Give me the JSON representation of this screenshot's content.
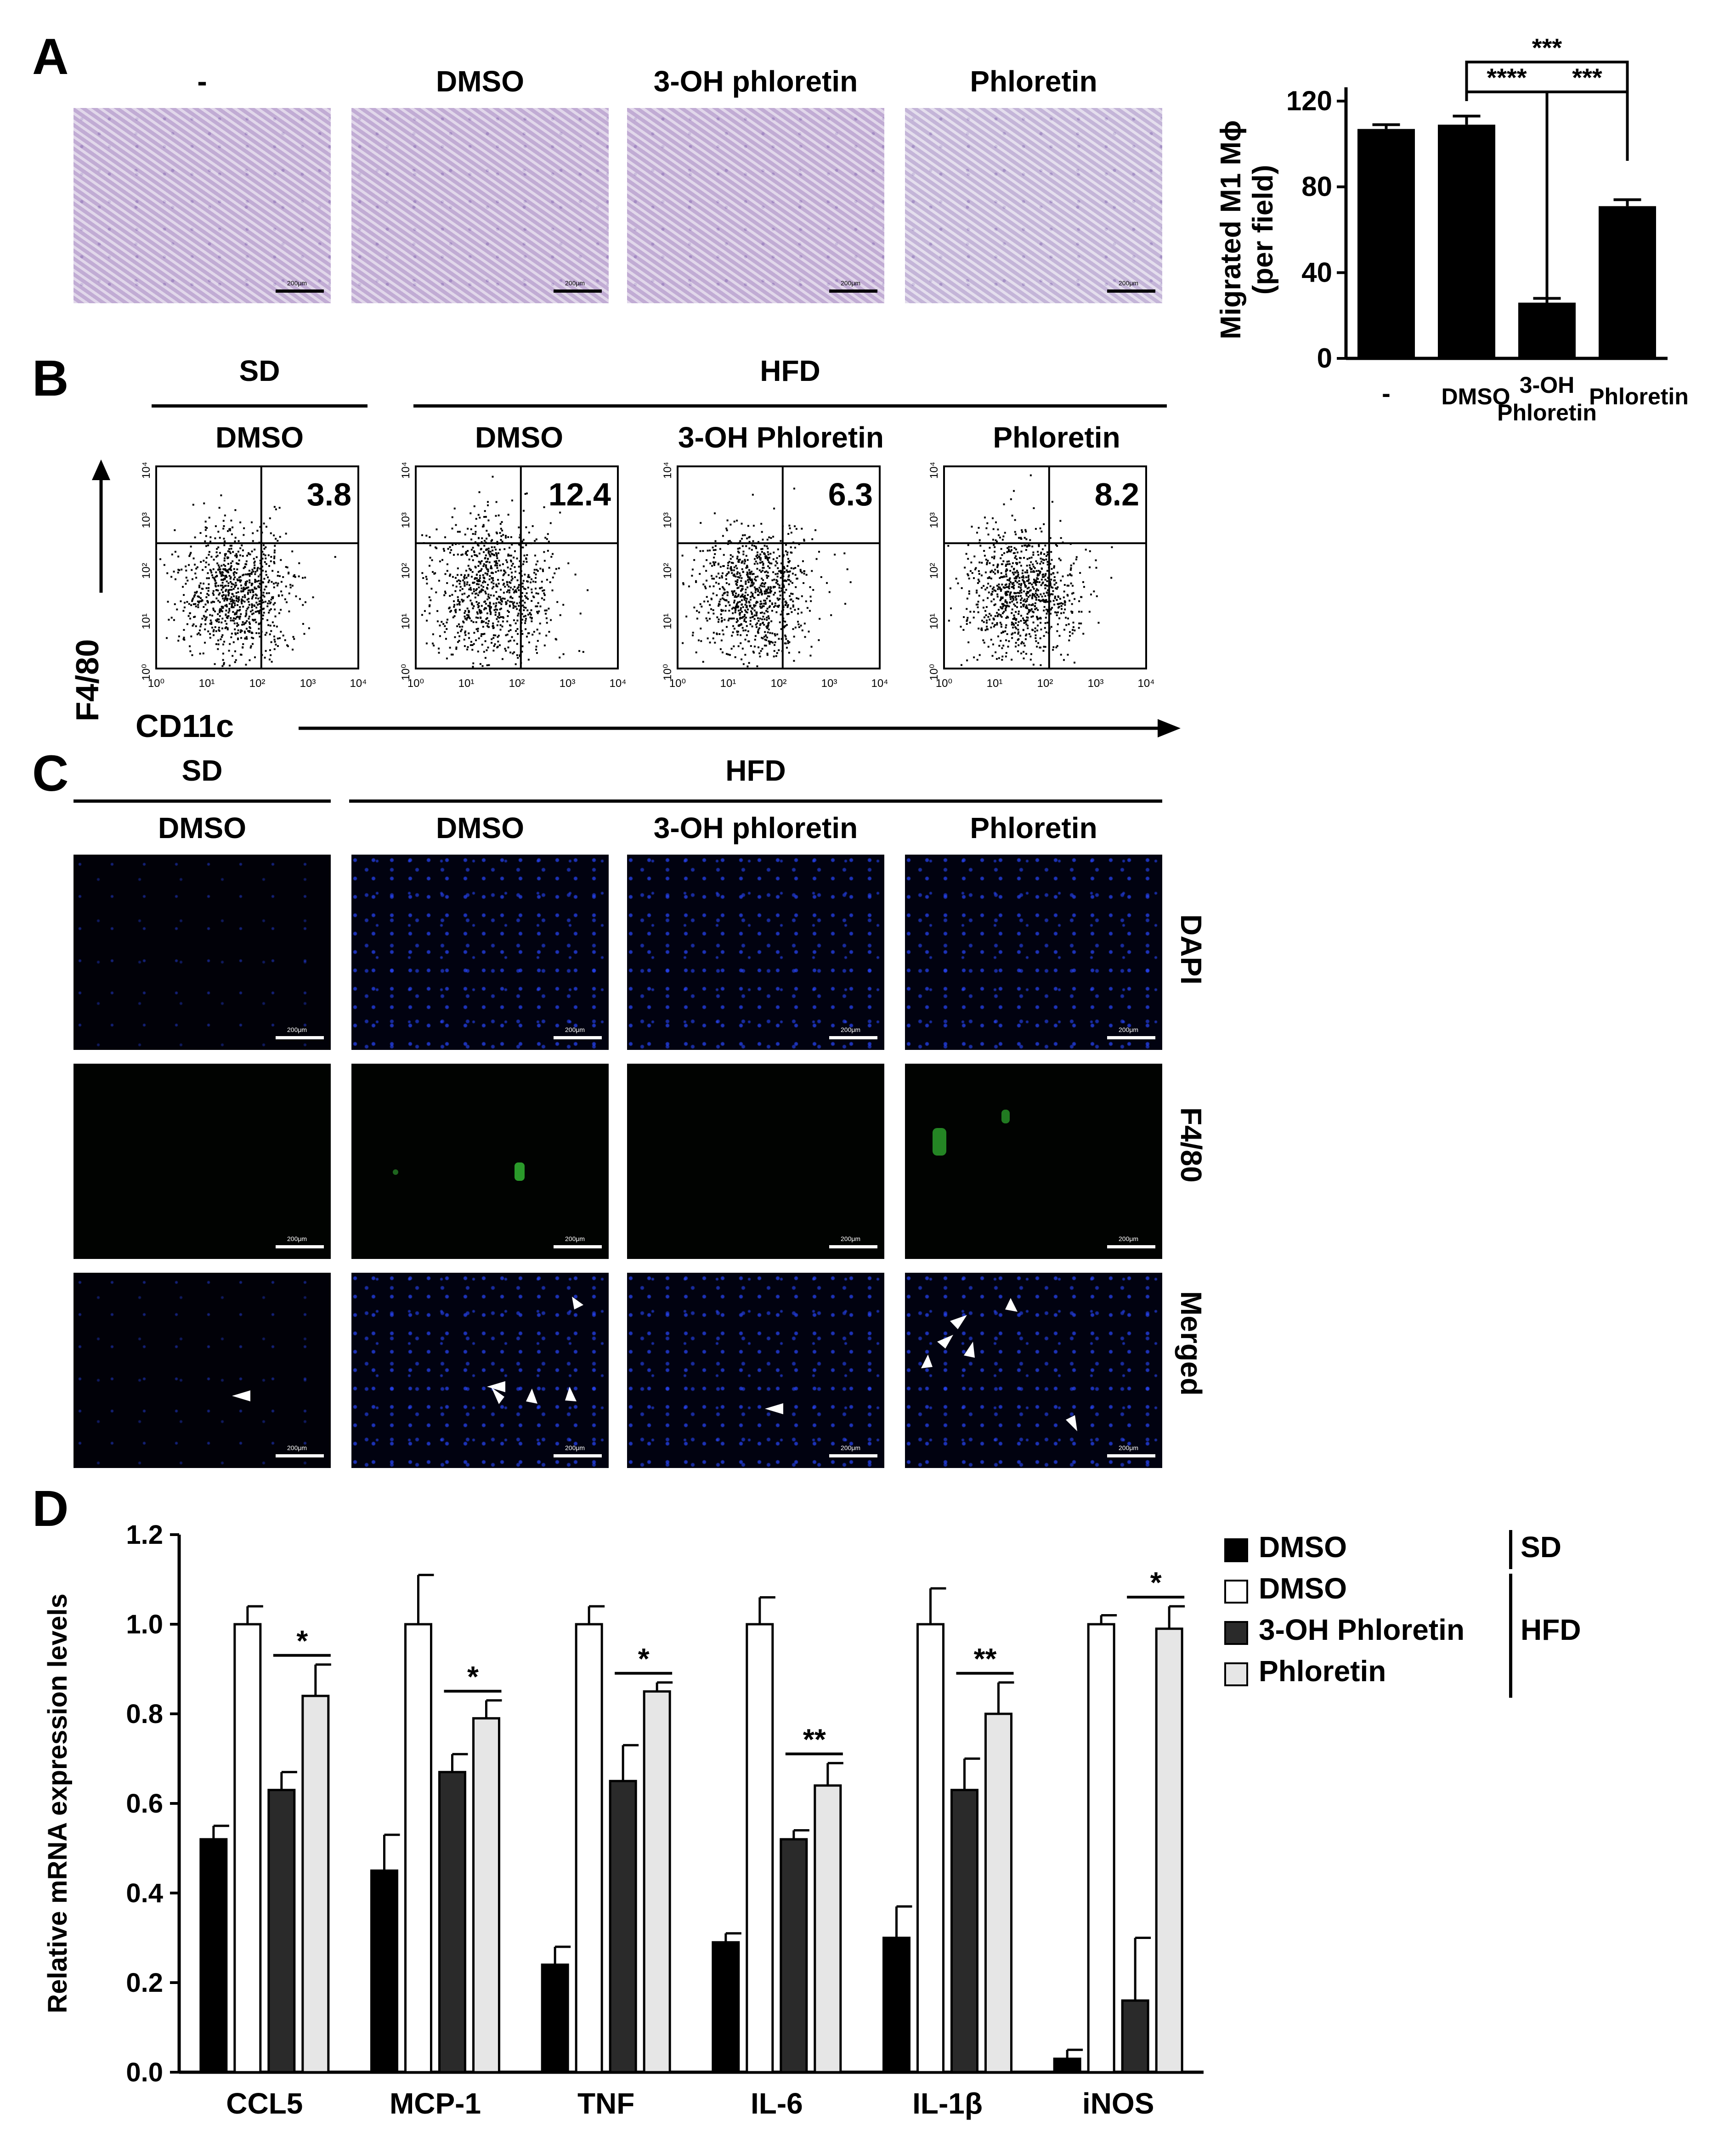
{
  "panelA": {
    "label": "A",
    "headers": [
      "-",
      "DMSO",
      "3-OH phloretin",
      "Phloretin"
    ],
    "scale_text": "200μm",
    "chart": {
      "ylabel_line1": "Migrated M1 Mϕ",
      "ylabel_line2": "(per field)",
      "yticks": [
        "0",
        "40",
        "80",
        "120"
      ],
      "xlabels": [
        "-",
        "DMSO",
        "3-OH",
        "Phloretin",
        "Phloretin"
      ],
      "sig": [
        "***",
        "****",
        "***"
      ]
    }
  },
  "panelB": {
    "label": "B",
    "group_sd": "SD",
    "group_hfd": "HFD",
    "headers": [
      "DMSO",
      "DMSO",
      "3-OH Phloretin",
      "Phloretin"
    ],
    "percentages": [
      "3.8",
      "12.4",
      "6.3",
      "8.2"
    ],
    "ylabel": "F4/80",
    "xlabel": "CD11c",
    "ticks": [
      "10⁰",
      "10¹",
      "10²",
      "10³",
      "10⁴"
    ],
    "last_tick": "10⁴"
  },
  "panelC": {
    "label": "C",
    "group_sd": "SD",
    "group_hfd": "HFD",
    "headers": [
      "DMSO",
      "DMSO",
      "3-OH phloretin",
      "Phloretin"
    ],
    "row_labels": [
      "DAPI",
      "F4/80",
      "Merged"
    ],
    "scale_text": "200μm"
  },
  "panelD": {
    "label": "D",
    "legend": {
      "items": [
        "DMSO",
        "DMSO",
        "3-OH Phloretin",
        "Phloretin"
      ],
      "groups": [
        "SD",
        "HFD"
      ]
    },
    "sig_labels": [
      "*",
      "*",
      "*",
      "**",
      "**",
      "*"
    ]
  },
  "chart_data": [
    {
      "type": "bar",
      "categories": [
        "-",
        "DMSO",
        "3-OH Phloretin",
        "Phloretin"
      ],
      "values": [
        107,
        109,
        26,
        71
      ],
      "errors": [
        2,
        4,
        2,
        3
      ],
      "ylabel": "Migrated M1 Mϕ (per field)",
      "ylim": [
        0,
        120
      ],
      "yticks": [
        0,
        40,
        80,
        120
      ],
      "significance": [
        {
          "pair": [
            "DMSO",
            "3-OH Phloretin"
          ],
          "label": "****"
        },
        {
          "pair": [
            "3-OH Phloretin",
            "Phloretin"
          ],
          "label": "***"
        },
        {
          "pair": [
            "DMSO",
            "Phloretin"
          ],
          "label": "***"
        }
      ]
    },
    {
      "type": "bar",
      "categories": [
        "CCL5",
        "MCP-1",
        "TNF",
        "IL-6",
        "IL-1β",
        "iNOS"
      ],
      "series": [
        {
          "name": "DMSO (SD)",
          "fill": "#000000",
          "values": [
            0.52,
            0.45,
            0.24,
            0.29,
            0.3,
            0.03
          ],
          "errors": [
            0.03,
            0.08,
            0.04,
            0.02,
            0.07,
            0.02
          ]
        },
        {
          "name": "DMSO (HFD)",
          "fill": "#ffffff",
          "values": [
            1.0,
            1.0,
            1.0,
            1.0,
            1.0,
            1.0
          ],
          "errors": [
            0.04,
            0.11,
            0.04,
            0.06,
            0.08,
            0.02
          ]
        },
        {
          "name": "3-OH Phloretin (HFD)",
          "fill": "#2a2a2a",
          "values": [
            0.63,
            0.67,
            0.65,
            0.52,
            0.63,
            0.16
          ],
          "errors": [
            0.04,
            0.04,
            0.08,
            0.02,
            0.07,
            0.14
          ]
        },
        {
          "name": "Phloretin (HFD)",
          "fill": "#e6e6e6",
          "values": [
            0.84,
            0.79,
            0.85,
            0.64,
            0.8,
            0.99
          ],
          "errors": [
            0.07,
            0.04,
            0.02,
            0.05,
            0.07,
            0.05
          ]
        }
      ],
      "ylabel": "Relative mRNA expression levels",
      "ylim": [
        0,
        1.2
      ],
      "yticks": [
        "0.0",
        "0.2",
        "0.4",
        "0.6",
        "0.8",
        "1.0",
        "1.2"
      ],
      "significance": [
        "*",
        "*",
        "*",
        "**",
        "**",
        "*"
      ]
    }
  ]
}
